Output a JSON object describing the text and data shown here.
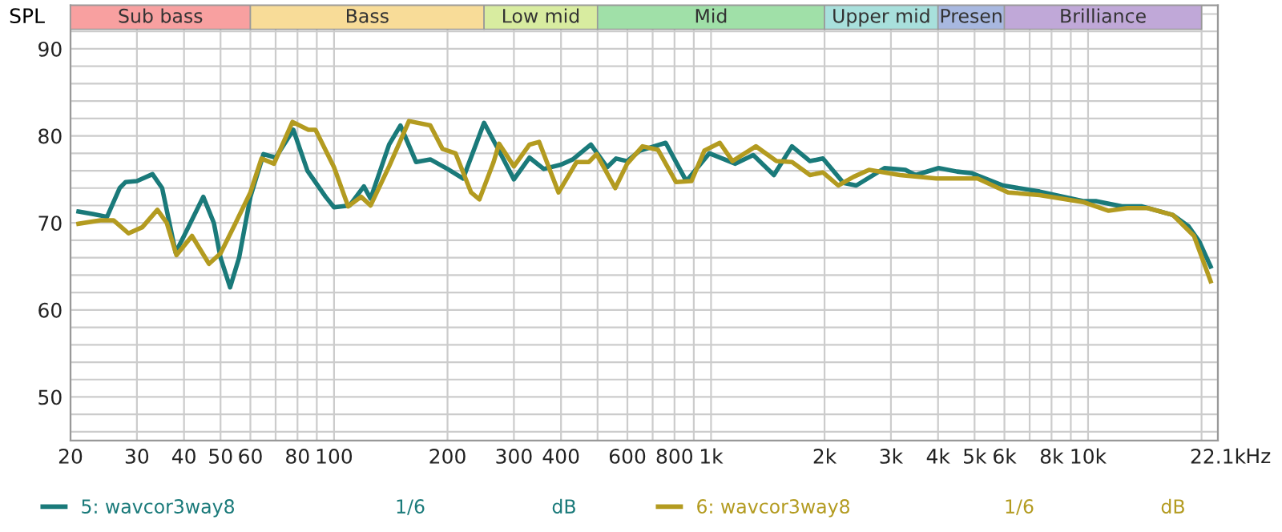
{
  "chart_data": {
    "type": "line",
    "ylabel": "SPL",
    "xlim": [
      20,
      22100
    ],
    "ylim": [
      45,
      95
    ],
    "log": "x",
    "grid": true,
    "legend": "bottom",
    "line_style": "solid",
    "marker": "none",
    "xticks": [
      20,
      30,
      40,
      50,
      60,
      {
        "value": 70,
        "label": null
      },
      80,
      {
        "value": 90,
        "label": null
      },
      100,
      200,
      300,
      400,
      {
        "value": 500,
        "label": null
      },
      600,
      {
        "value": 700,
        "label": null
      },
      800,
      {
        "value": 900,
        "label": null
      },
      {
        "value": 1000,
        "label": "1k"
      },
      {
        "value": 2000,
        "label": "2k"
      },
      {
        "value": 3000,
        "label": "3k"
      },
      {
        "value": 4000,
        "label": "4k"
      },
      {
        "value": 5000,
        "label": "5k"
      },
      {
        "value": 6000,
        "label": "6k"
      },
      {
        "value": 7000,
        "label": null
      },
      {
        "value": 8000,
        "label": "8k"
      },
      {
        "value": 9000,
        "label": null
      },
      {
        "value": 10000,
        "label": "10k"
      },
      {
        "value": 20000,
        "label": null
      },
      {
        "value": 22100,
        "label": "22.1k"
      }
    ],
    "xlabel": "Hz",
    "yticks": [
      {
        "value": 46,
        "label": null
      },
      {
        "value": 48,
        "label": null
      },
      50,
      {
        "value": 52,
        "label": null
      },
      {
        "value": 54,
        "label": null
      },
      {
        "value": 56,
        "label": null
      },
      {
        "value": 58,
        "label": null
      },
      60,
      {
        "value": 62,
        "label": null
      },
      {
        "value": 64,
        "label": null
      },
      {
        "value": 66,
        "label": null
      },
      {
        "value": 68,
        "label": null
      },
      70,
      {
        "value": 72,
        "label": null
      },
      {
        "value": 74,
        "label": null
      },
      {
        "value": 76,
        "label": null
      },
      {
        "value": 78,
        "label": null
      },
      80,
      {
        "value": 82,
        "label": null
      },
      {
        "value": 84,
        "label": null
      },
      {
        "value": 86,
        "label": null
      },
      {
        "value": 88,
        "label": null
      },
      90,
      {
        "value": 92,
        "label": null
      },
      {
        "value": 94,
        "label": null
      }
    ],
    "bands": [
      {
        "axis": "x",
        "from": 20,
        "to": 60,
        "label": "Sub bass",
        "color": "#f8a0a0"
      },
      {
        "axis": "x",
        "from": 60,
        "to": 250,
        "label": "Bass",
        "color": "#f8dc98"
      },
      {
        "axis": "x",
        "from": 250,
        "to": 500,
        "label": "Low mid",
        "color": "#d8eca0"
      },
      {
        "axis": "x",
        "from": 500,
        "to": 2000,
        "label": "Mid",
        "color": "#a0e0a8"
      },
      {
        "axis": "x",
        "from": 2000,
        "to": 4000,
        "label": "Upper mid",
        "color": "#a8e0dc"
      },
      {
        "axis": "x",
        "from": 4000,
        "to": 6000,
        "label": "Presen",
        "color": "#a8b8e0"
      },
      {
        "axis": "x",
        "from": 6000,
        "to": 20000,
        "label": "Brilliance",
        "color": "#c0a8d8"
      }
    ],
    "annotations": [
      "1/6",
      "dB",
      "1/6",
      "dB"
    ],
    "series": [
      {
        "name": "5: wavcor3way8",
        "color": "#1a7a7a",
        "x": [
          21,
          23,
          25,
          27,
          28,
          30,
          33,
          35,
          38,
          40,
          45,
          48,
          50,
          53,
          56,
          60,
          65,
          70,
          78,
          85,
          95,
          100,
          110,
          120,
          125,
          140,
          150,
          165,
          180,
          200,
          220,
          250,
          280,
          300,
          330,
          360,
          400,
          430,
          480,
          530,
          560,
          599,
          647,
          758,
          860,
          990,
          1160,
          1294,
          1468,
          1639,
          1830,
          1980,
          2245,
          2428,
          2885,
          3276,
          3487,
          4015,
          4493,
          4925,
          5950,
          7442,
          9700,
          10480,
          12290,
          13900,
          16800,
          18480,
          19700,
          21140
        ],
        "values": [
          71.3,
          71,
          70.7,
          74,
          74.7,
          74.8,
          75.6,
          74,
          66.6,
          68.5,
          73,
          70,
          66,
          62.6,
          66,
          73,
          77.9,
          77.5,
          80.7,
          76,
          73,
          71.8,
          72,
          74.2,
          72.8,
          79,
          81.2,
          77,
          77.3,
          76.2,
          75.1,
          81.5,
          77.5,
          75,
          77.5,
          76.2,
          76.7,
          77.3,
          79,
          76.4,
          77.4,
          77.1,
          78.3,
          79.2,
          74.8,
          78,
          76.8,
          77.8,
          75.5,
          78.8,
          77.1,
          77.4,
          74.6,
          74.3,
          76.3,
          76.1,
          75.5,
          76.3,
          75.9,
          75.7,
          74.3,
          73.6,
          72.5,
          72.5,
          71.9,
          71.9,
          70.9,
          69.6,
          67.9,
          65
        ]
      },
      {
        "name": "6: wavcor3way8",
        "color": "#b39b20",
        "x": [
          21,
          24,
          26,
          28.5,
          31,
          34,
          36,
          38.2,
          42,
          46.6,
          50,
          54.7,
          60,
          64.2,
          69.3,
          77.6,
          85.5,
          89.3,
          100,
          109,
          118,
          125,
          140,
          158,
          180,
          194,
          210,
          231,
          243,
          265,
          274,
          300,
          330,
          350,
          394,
          440,
          474,
          497,
          557,
          599,
          658,
          723,
          807,
          887,
          960,
          1055,
          1140,
          1315,
          1491,
          1640,
          1830,
          1980,
          2175,
          2390,
          2625,
          2885,
          3170,
          3957,
          5090,
          6140,
          7442,
          9700,
          11340,
          12700,
          14400,
          16800,
          19100,
          21140
        ],
        "values": [
          69.9,
          70.3,
          70.3,
          68.8,
          69.5,
          71.5,
          70,
          66.3,
          68.5,
          65.3,
          66.5,
          69.9,
          73.5,
          77.4,
          76.8,
          81.6,
          80.7,
          80.7,
          76.4,
          71.9,
          73,
          72,
          76.5,
          81.7,
          81.2,
          78.5,
          78,
          73.5,
          72.7,
          77,
          79.1,
          76.5,
          79,
          79.3,
          73.5,
          77,
          77,
          77.9,
          74,
          76.8,
          78.8,
          78.4,
          74.7,
          74.8,
          78.3,
          79.2,
          77.1,
          78.8,
          77.1,
          77,
          75.5,
          75.8,
          74.3,
          75.3,
          76.1,
          75.8,
          75.5,
          75.1,
          75.1,
          73.5,
          73.2,
          72.4,
          71.4,
          71.7,
          71.7,
          70.9,
          68.5,
          63.3
        ]
      }
    ]
  }
}
